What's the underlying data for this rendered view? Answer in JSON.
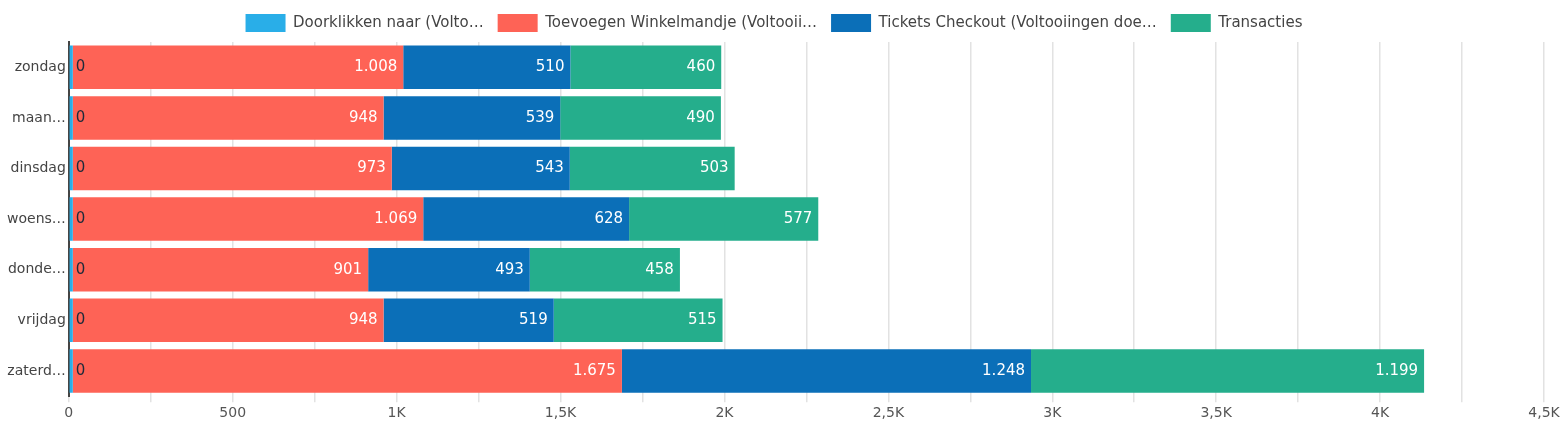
{
  "chart_data": {
    "type": "bar",
    "orientation": "horizontal",
    "stacked": true,
    "categories": [
      "zondag",
      "maan…",
      "dinsdag",
      "woens…",
      "donde…",
      "vrijdag",
      "zaterd…"
    ],
    "series": [
      {
        "name": "Doorklikken naar (Volto…",
        "color": "#29aee8",
        "values": [
          0,
          0,
          0,
          0,
          0,
          0,
          0
        ],
        "value_labels": [
          "0",
          "0",
          "0",
          "0",
          "0",
          "0",
          "0"
        ]
      },
      {
        "name": "Toevoegen Winkelmandje (Voltooii…",
        "color": "#fe6356",
        "values": [
          1008,
          948,
          973,
          1069,
          901,
          948,
          1675
        ],
        "value_labels": [
          "1.008",
          "948",
          "973",
          "1.069",
          "901",
          "948",
          "1.675"
        ]
      },
      {
        "name": "Tickets Checkout (Voltooiingen doe…",
        "color": "#0b6fb8",
        "values": [
          510,
          539,
          543,
          628,
          493,
          519,
          1248
        ],
        "value_labels": [
          "510",
          "539",
          "543",
          "628",
          "493",
          "519",
          "1.248"
        ]
      },
      {
        "name": "Transacties",
        "color": "#25ae8c",
        "values": [
          460,
          490,
          503,
          577,
          458,
          515,
          1199
        ],
        "value_labels": [
          "460",
          "490",
          "503",
          "577",
          "458",
          "515",
          "1.199"
        ]
      }
    ],
    "xlim": [
      0,
      4500
    ],
    "xticks": [
      0,
      {
        "value": 250,
        "label": null
      },
      500,
      {
        "value": 750,
        "label": null
      },
      {
        "value": 1000,
        "label": "1K"
      },
      {
        "value": 1250,
        "label": null
      },
      {
        "value": 1500,
        "label": "1,5K"
      },
      {
        "value": 1750,
        "label": null
      },
      {
        "value": 2000,
        "label": "2K"
      },
      {
        "value": 2250,
        "label": null
      },
      {
        "value": 2500,
        "label": "2,5K"
      },
      {
        "value": 2750,
        "label": null
      },
      {
        "value": 3000,
        "label": "3K"
      },
      {
        "value": 3250,
        "label": null
      },
      {
        "value": 3500,
        "label": "3,5K"
      },
      {
        "value": 3750,
        "label": null
      },
      {
        "value": 4000,
        "label": "4K"
      },
      {
        "value": 4250,
        "label": null
      },
      {
        "value": 4500,
        "label": "4,5K"
      }
    ],
    "grid": "x",
    "legend": "top"
  }
}
